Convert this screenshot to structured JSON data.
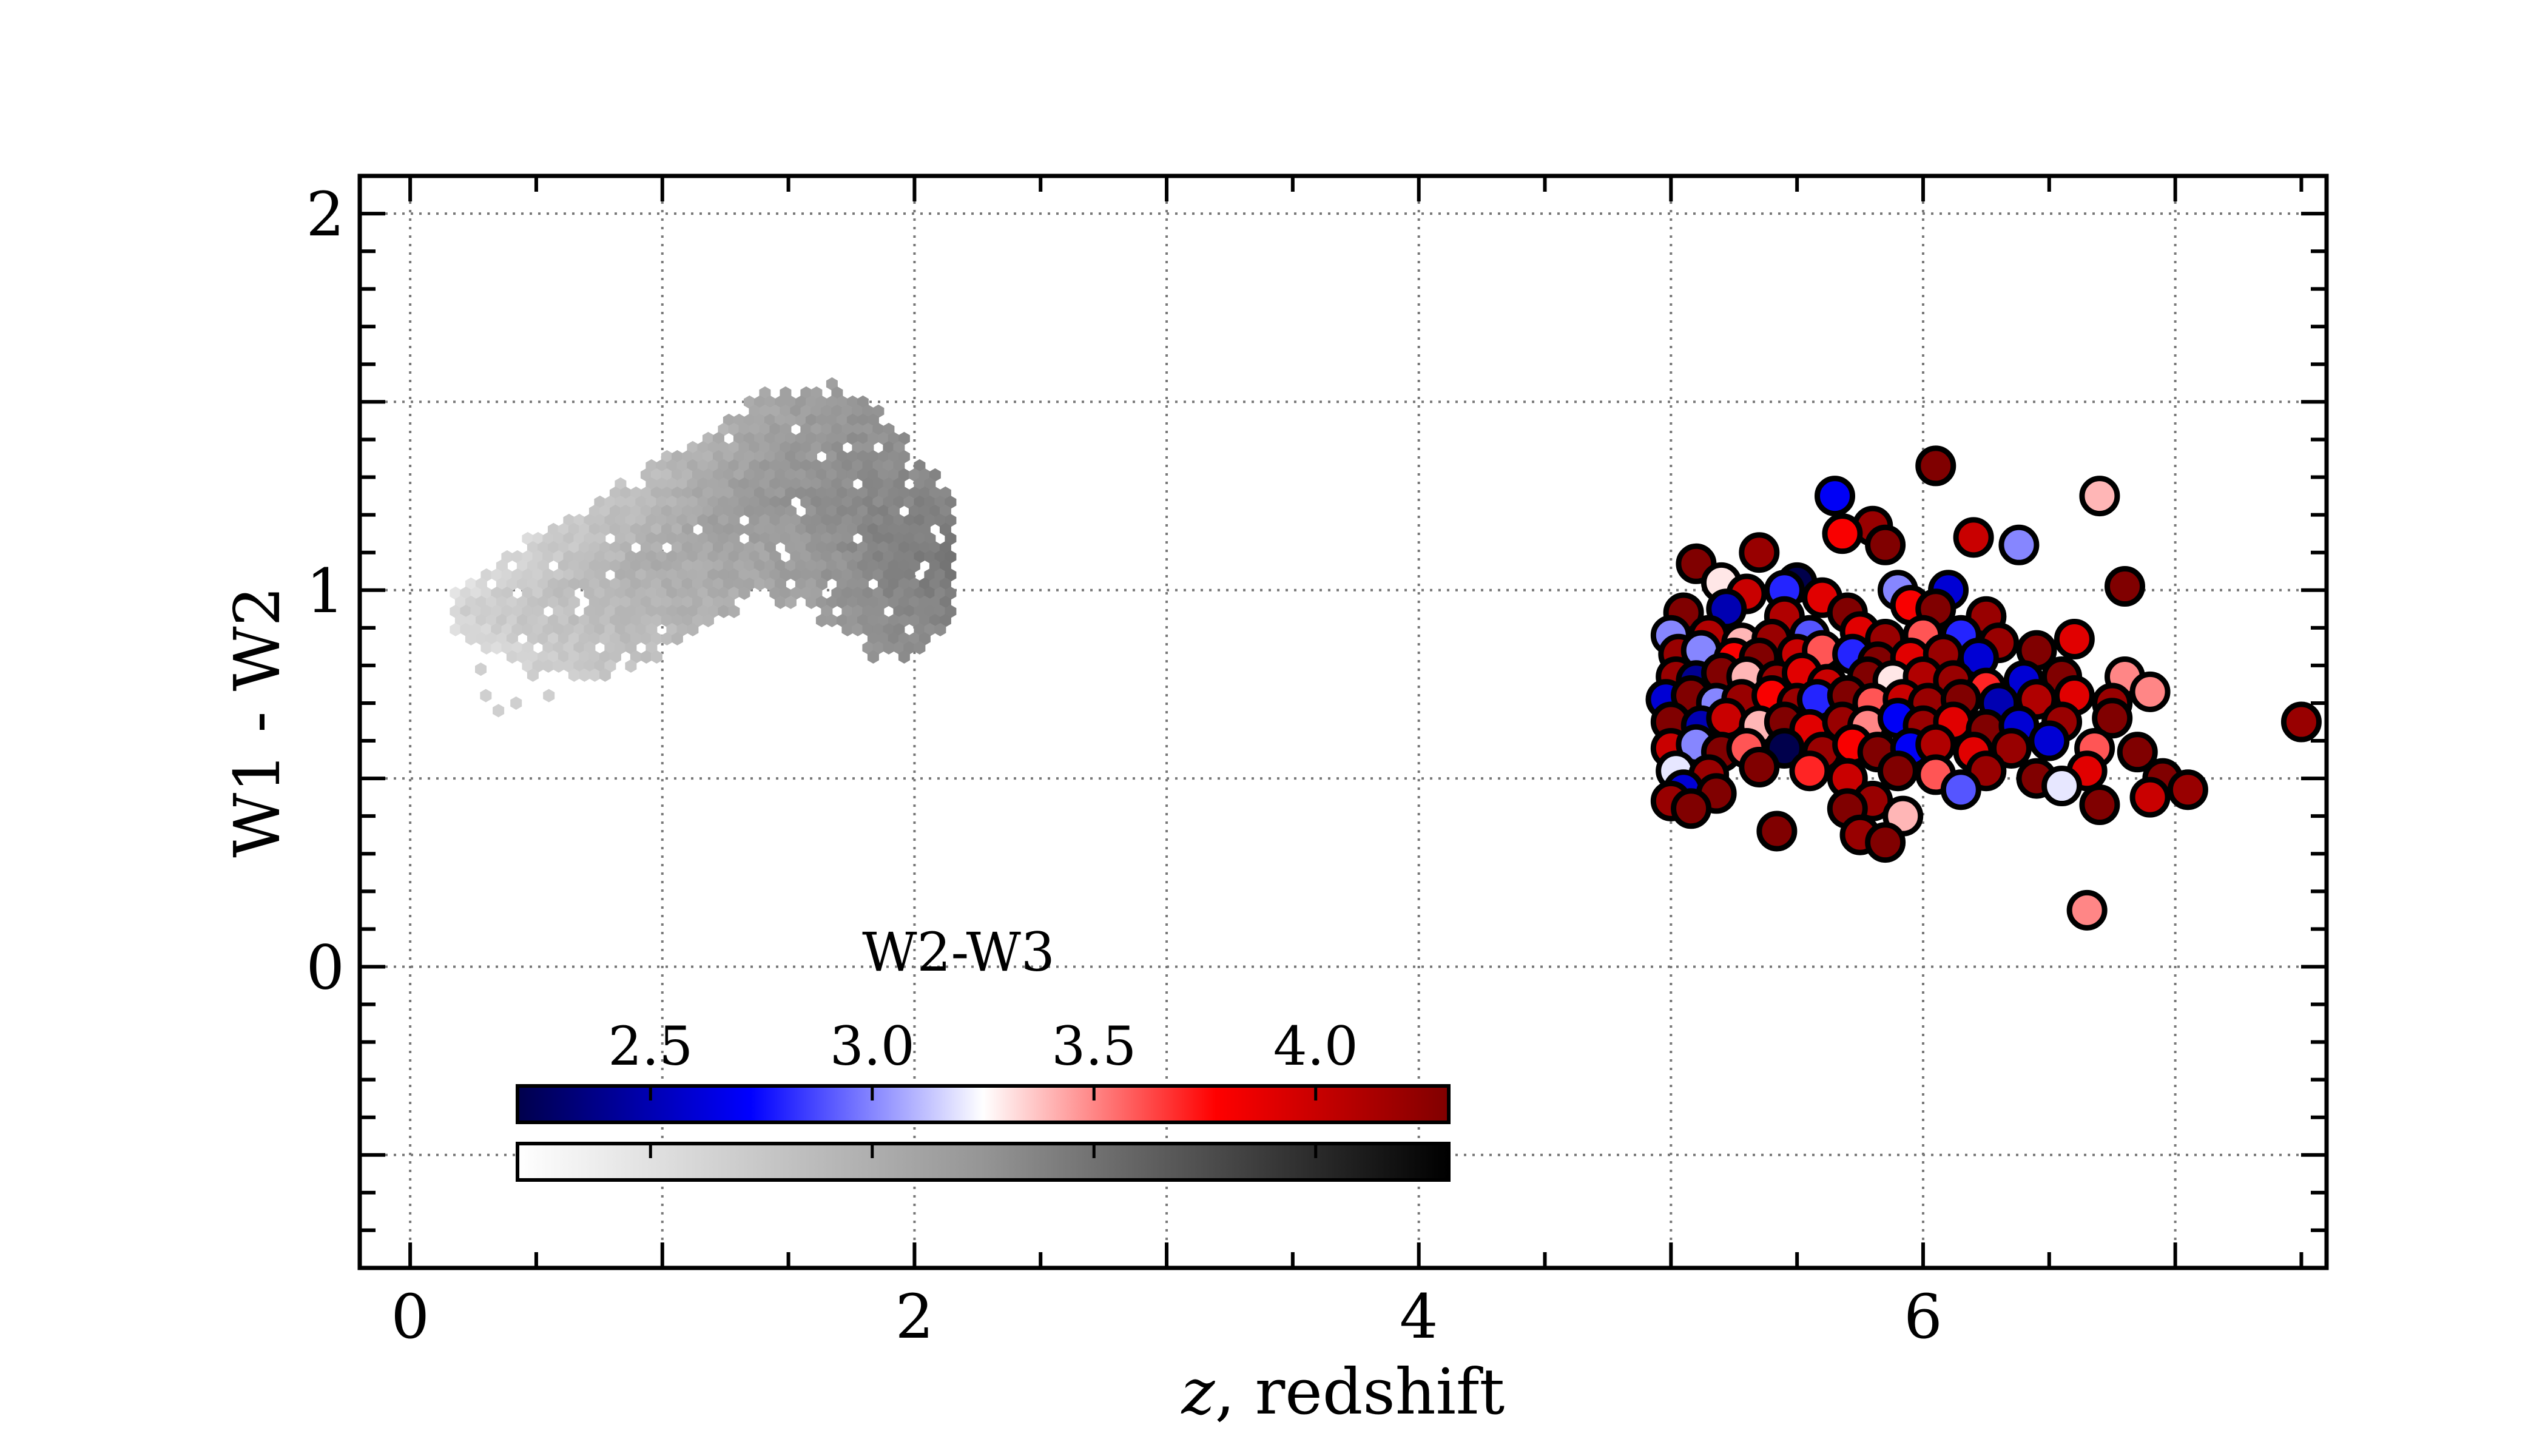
{
  "chart_data": {
    "type": "scatter",
    "xlabel_italic": "z",
    "xlabel_rest": ", redshift",
    "ylabel": "W1 - W2",
    "xlim": [
      -0.2,
      7.6
    ],
    "ylim": [
      -0.8,
      2.1
    ],
    "xticks": [
      0,
      2,
      4,
      6
    ],
    "xtick_labels": [
      "0",
      "2",
      "4",
      "6"
    ],
    "yticks": [
      0,
      1,
      2
    ],
    "ytick_labels": [
      "0",
      "1",
      "2"
    ],
    "x_minor_step": 0.5,
    "y_minor_step": 0.1,
    "grid": true,
    "colorbar": {
      "title": "W2-W3",
      "range": [
        2.2,
        4.3
      ],
      "ticks": [
        2.5,
        3.0,
        3.5,
        4.0
      ],
      "tick_labels": [
        "2.5",
        "3.0",
        "3.5",
        "4.0"
      ],
      "top_cmap": "seismic",
      "bottom_cmap": "greys"
    },
    "series": [
      {
        "kind": "hexbin-density",
        "color_scale": "greys",
        "description_region": {
          "x_range": [
            0.2,
            2.15
          ],
          "y_range": [
            0.65,
            1.6
          ]
        },
        "shape_profile": [
          {
            "x": 0.2,
            "ylo": 0.88,
            "yhi": 1.0
          },
          {
            "x": 0.5,
            "ylo": 0.78,
            "yhi": 1.14
          },
          {
            "x": 0.8,
            "ylo": 0.8,
            "yhi": 1.24
          },
          {
            "x": 1.1,
            "ylo": 0.88,
            "yhi": 1.38
          },
          {
            "x": 1.4,
            "ylo": 1.02,
            "yhi": 1.5
          },
          {
            "x": 1.7,
            "ylo": 0.92,
            "yhi": 1.52
          },
          {
            "x": 1.9,
            "ylo": 0.82,
            "yhi": 1.42
          },
          {
            "x": 2.1,
            "ylo": 0.9,
            "yhi": 1.28
          }
        ]
      },
      {
        "kind": "circles",
        "points": [
          [
            5.5,
            1.02,
            2.2
          ],
          [
            5.65,
            1.25,
            2.7
          ],
          [
            6.05,
            1.33,
            4.3
          ],
          [
            6.7,
            1.25,
            3.4
          ],
          [
            6.38,
            1.12,
            3.0
          ],
          [
            6.2,
            1.14,
            4.0
          ],
          [
            5.8,
            1.17,
            4.2
          ],
          [
            5.68,
            1.15,
            3.8
          ],
          [
            5.35,
            1.1,
            4.2
          ],
          [
            5.1,
            1.07,
            4.3
          ],
          [
            5.85,
            1.12,
            4.3
          ],
          [
            6.8,
            1.01,
            4.3
          ],
          [
            5.2,
            1.02,
            3.3
          ],
          [
            5.45,
            1.0,
            2.8
          ],
          [
            5.9,
            1.0,
            3.0
          ],
          [
            6.1,
            1.0,
            2.6
          ],
          [
            5.3,
            0.99,
            4.0
          ],
          [
            5.6,
            0.98,
            3.9
          ],
          [
            5.05,
            0.94,
            4.3
          ],
          [
            5.22,
            0.95,
            2.5
          ],
          [
            5.45,
            0.93,
            4.1
          ],
          [
            5.7,
            0.94,
            4.3
          ],
          [
            5.95,
            0.96,
            3.8
          ],
          [
            6.05,
            0.95,
            4.3
          ],
          [
            6.25,
            0.93,
            4.2
          ],
          [
            5.0,
            0.88,
            3.0
          ],
          [
            5.15,
            0.88,
            4.1
          ],
          [
            5.28,
            0.86,
            3.4
          ],
          [
            5.4,
            0.87,
            4.2
          ],
          [
            5.55,
            0.88,
            2.9
          ],
          [
            5.75,
            0.89,
            3.9
          ],
          [
            5.85,
            0.87,
            4.2
          ],
          [
            6.0,
            0.88,
            3.6
          ],
          [
            6.15,
            0.88,
            2.8
          ],
          [
            6.3,
            0.86,
            4.2
          ],
          [
            6.6,
            0.87,
            3.9
          ],
          [
            5.03,
            0.83,
            4.2
          ],
          [
            5.12,
            0.84,
            3.0
          ],
          [
            5.25,
            0.82,
            3.8
          ],
          [
            5.35,
            0.82,
            4.3
          ],
          [
            5.5,
            0.83,
            4.0
          ],
          [
            5.6,
            0.84,
            3.6
          ],
          [
            5.72,
            0.83,
            2.8
          ],
          [
            5.82,
            0.81,
            4.3
          ],
          [
            5.95,
            0.82,
            3.9
          ],
          [
            6.08,
            0.83,
            4.2
          ],
          [
            6.22,
            0.82,
            2.6
          ],
          [
            6.45,
            0.84,
            4.3
          ],
          [
            5.02,
            0.77,
            4.2
          ],
          [
            5.1,
            0.76,
            2.4
          ],
          [
            5.2,
            0.78,
            4.3
          ],
          [
            5.3,
            0.77,
            3.4
          ],
          [
            5.42,
            0.76,
            4.2
          ],
          [
            5.52,
            0.78,
            3.9
          ],
          [
            5.62,
            0.75,
            4.0
          ],
          [
            5.78,
            0.77,
            4.3
          ],
          [
            5.88,
            0.76,
            3.3
          ],
          [
            6.0,
            0.77,
            4.1
          ],
          [
            6.12,
            0.76,
            4.2
          ],
          [
            6.25,
            0.74,
            3.7
          ],
          [
            6.4,
            0.76,
            2.6
          ],
          [
            6.55,
            0.77,
            4.3
          ],
          [
            6.8,
            0.77,
            3.5
          ],
          [
            4.98,
            0.71,
            2.6
          ],
          [
            5.08,
            0.72,
            4.3
          ],
          [
            5.18,
            0.7,
            3.0
          ],
          [
            5.28,
            0.71,
            4.2
          ],
          [
            5.4,
            0.72,
            3.8
          ],
          [
            5.5,
            0.7,
            4.2
          ],
          [
            5.58,
            0.71,
            2.8
          ],
          [
            5.7,
            0.72,
            4.3
          ],
          [
            5.8,
            0.7,
            3.6
          ],
          [
            5.92,
            0.71,
            4.0
          ],
          [
            6.02,
            0.7,
            4.2
          ],
          [
            6.15,
            0.71,
            4.3
          ],
          [
            6.3,
            0.7,
            2.5
          ],
          [
            6.45,
            0.71,
            4.1
          ],
          [
            6.6,
            0.72,
            3.9
          ],
          [
            6.75,
            0.7,
            4.2
          ],
          [
            6.9,
            0.73,
            3.5
          ],
          [
            5.0,
            0.65,
            4.3
          ],
          [
            5.12,
            0.64,
            2.5
          ],
          [
            5.22,
            0.66,
            4.0
          ],
          [
            5.35,
            0.64,
            3.4
          ],
          [
            5.45,
            0.65,
            4.3
          ],
          [
            5.55,
            0.63,
            3.9
          ],
          [
            5.68,
            0.65,
            4.2
          ],
          [
            5.78,
            0.64,
            3.5
          ],
          [
            5.9,
            0.66,
            2.7
          ],
          [
            6.0,
            0.64,
            4.2
          ],
          [
            6.12,
            0.65,
            3.9
          ],
          [
            6.25,
            0.63,
            4.3
          ],
          [
            6.38,
            0.64,
            2.6
          ],
          [
            6.55,
            0.65,
            4.2
          ],
          [
            6.75,
            0.66,
            4.3
          ],
          [
            7.5,
            0.65,
            4.2
          ],
          [
            5.0,
            0.58,
            4.0
          ],
          [
            5.1,
            0.59,
            3.0
          ],
          [
            5.2,
            0.57,
            4.3
          ],
          [
            5.3,
            0.58,
            3.6
          ],
          [
            5.45,
            0.58,
            2.0
          ],
          [
            5.6,
            0.57,
            4.2
          ],
          [
            5.72,
            0.59,
            3.8
          ],
          [
            5.82,
            0.57,
            4.3
          ],
          [
            5.95,
            0.58,
            2.7
          ],
          [
            6.05,
            0.59,
            4.1
          ],
          [
            6.2,
            0.57,
            3.9
          ],
          [
            6.35,
            0.58,
            4.2
          ],
          [
            6.5,
            0.6,
            2.6
          ],
          [
            6.68,
            0.58,
            3.6
          ],
          [
            6.85,
            0.57,
            4.3
          ],
          [
            5.02,
            0.52,
            3.2
          ],
          [
            5.15,
            0.51,
            4.2
          ],
          [
            5.35,
            0.53,
            4.3
          ],
          [
            5.55,
            0.52,
            3.7
          ],
          [
            5.7,
            0.5,
            4.0
          ],
          [
            5.9,
            0.52,
            4.3
          ],
          [
            6.05,
            0.51,
            3.6
          ],
          [
            6.25,
            0.52,
            4.2
          ],
          [
            6.45,
            0.5,
            4.3
          ],
          [
            6.65,
            0.52,
            3.9
          ],
          [
            6.95,
            0.5,
            4.3
          ],
          [
            7.05,
            0.47,
            4.2
          ],
          [
            5.05,
            0.47,
            2.6
          ],
          [
            5.18,
            0.46,
            4.3
          ],
          [
            6.15,
            0.47,
            2.9
          ],
          [
            6.55,
            0.48,
            3.2
          ],
          [
            6.9,
            0.45,
            4.0
          ],
          [
            5.0,
            0.44,
            4.2
          ],
          [
            5.08,
            0.42,
            4.3
          ],
          [
            5.8,
            0.44,
            4.2
          ],
          [
            5.7,
            0.42,
            4.3
          ],
          [
            5.92,
            0.4,
            3.4
          ],
          [
            6.7,
            0.43,
            4.3
          ],
          [
            5.42,
            0.36,
            4.3
          ],
          [
            5.75,
            0.35,
            4.2
          ],
          [
            5.85,
            0.33,
            4.3
          ],
          [
            6.65,
            0.15,
            3.5
          ]
        ]
      }
    ]
  },
  "colors": {
    "grid": "#777777",
    "axes": "#000000",
    "marker_edge": "#000000"
  }
}
